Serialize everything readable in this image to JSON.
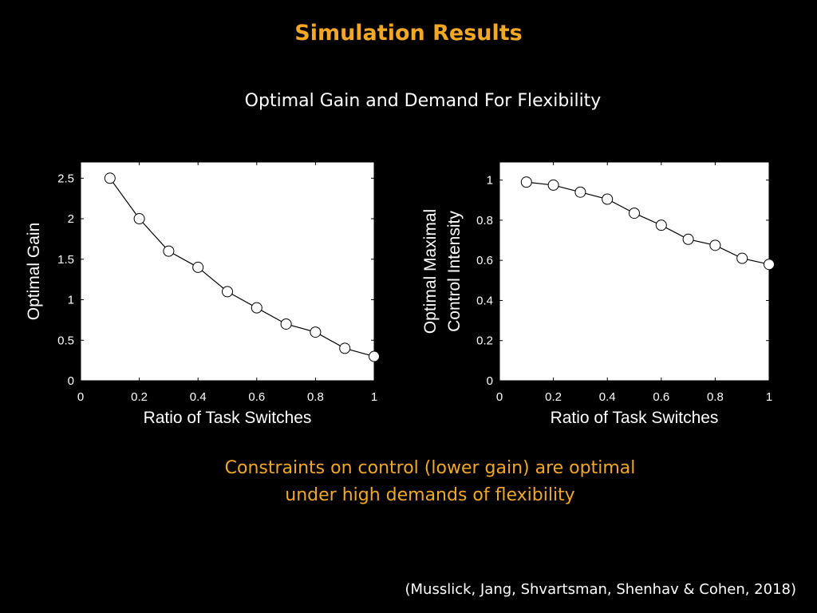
{
  "slide": {
    "title": "Simulation Results",
    "subtitle": "Optimal Gain and Demand For Flexibility",
    "conclusion_line1": "Constraints on control (lower gain) are optimal",
    "conclusion_line2": "under high demands of flexibility",
    "citation": "(Musslick, Jang, Shvartsman, Shenhav & Cohen, 2018)"
  },
  "colors": {
    "title": "#f2a825",
    "text": "#ffffff",
    "background": "#000000"
  },
  "chart_data": [
    {
      "type": "line",
      "xlabel": "Ratio of Task Switches",
      "ylabel": [
        "Optimal Gain"
      ],
      "xlim": [
        0,
        1
      ],
      "ylim": [
        0,
        2.7
      ],
      "xticks": [
        0,
        0.2,
        0.4,
        0.6,
        0.8,
        1
      ],
      "xtick_labels": [
        "0",
        "0.2",
        "0.4",
        "0.6",
        "0.8",
        "1"
      ],
      "yticks": [
        0,
        0.5,
        1,
        1.5,
        2,
        2.5
      ],
      "ytick_labels": [
        "0",
        "0.5",
        "1",
        "1.5",
        "2",
        "2.5"
      ],
      "x": [
        0.1,
        0.2,
        0.3,
        0.4,
        0.5,
        0.6,
        0.7,
        0.8,
        0.9,
        1.0
      ],
      "y": [
        2.5,
        2.0,
        1.6,
        1.4,
        1.1,
        0.9,
        0.7,
        0.6,
        0.4,
        0.3
      ],
      "grid": false,
      "marker": "filled-circle"
    },
    {
      "type": "line",
      "xlabel": "Ratio of Task Switches",
      "ylabel": [
        "Optimal Maximal",
        "Control Intensity"
      ],
      "xlim": [
        0,
        1
      ],
      "ylim": [
        0,
        1.09
      ],
      "xticks": [
        0,
        0.2,
        0.4,
        0.6,
        0.8,
        1
      ],
      "xtick_labels": [
        "0",
        "0.2",
        "0.4",
        "0.6",
        "0.8",
        "1"
      ],
      "yticks": [
        0,
        0.2,
        0.4,
        0.6,
        0.8,
        1
      ],
      "ytick_labels": [
        "0",
        "0.2",
        "0.4",
        "0.6",
        "0.8",
        "1"
      ],
      "x": [
        0.1,
        0.2,
        0.3,
        0.4,
        0.5,
        0.6,
        0.7,
        0.8,
        0.9,
        1.0
      ],
      "y": [
        0.99,
        0.975,
        0.94,
        0.905,
        0.835,
        0.775,
        0.705,
        0.675,
        0.61,
        0.58
      ],
      "grid": false,
      "marker": "filled-circle"
    }
  ]
}
